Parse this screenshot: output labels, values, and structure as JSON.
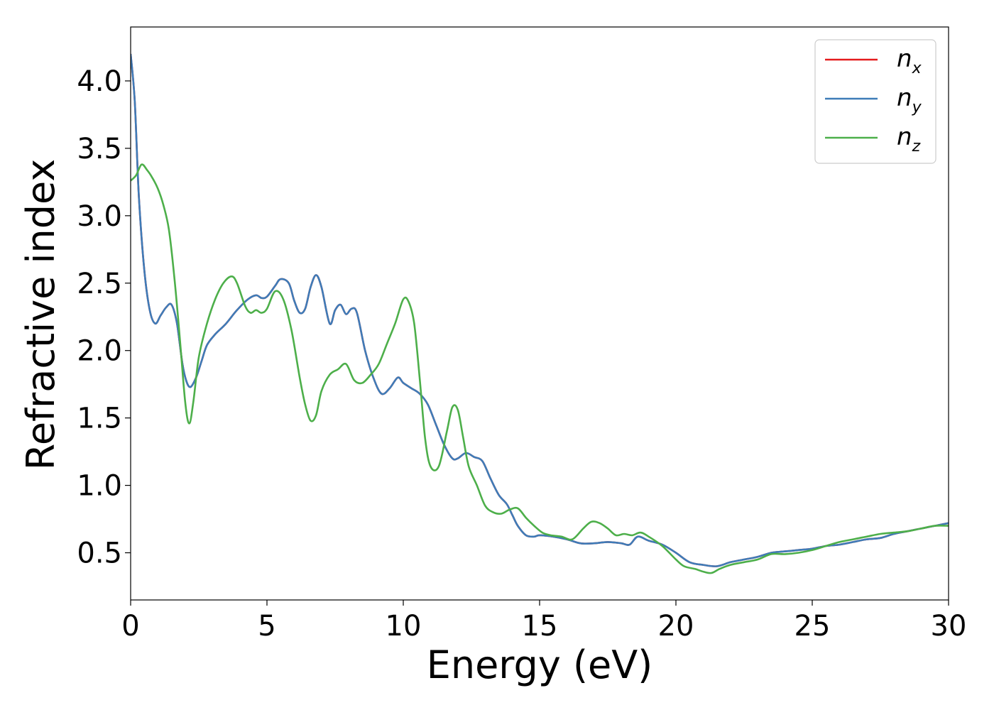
{
  "chart_data": {
    "type": "line",
    "xlabel": "Energy (eV)",
    "ylabel": "Refractive index",
    "xlim": [
      0,
      30
    ],
    "ylim": [
      0.15,
      4.4
    ],
    "x_ticks": [
      "0",
      "5",
      "10",
      "15",
      "20",
      "25",
      "30"
    ],
    "y_ticks": [
      "0.5",
      "1.0",
      "1.5",
      "2.0",
      "2.5",
      "3.0",
      "3.5",
      "4.0"
    ],
    "grid": false,
    "legend_position": "top-right",
    "series": [
      {
        "name": "x",
        "legend_main": "n",
        "legend_sub": "x",
        "color": "#e41a1c",
        "x": [
          0,
          0.15,
          0.3,
          0.5,
          0.7,
          0.9,
          1.1,
          1.3,
          1.5,
          1.7,
          1.9,
          2.05,
          2.2,
          2.4,
          2.6,
          2.8,
          3.1,
          3.5,
          3.9,
          4.3,
          4.6,
          4.8,
          5.0,
          5.3,
          5.5,
          5.8,
          6.0,
          6.2,
          6.4,
          6.6,
          6.8,
          7.0,
          7.3,
          7.5,
          7.7,
          7.9,
          8.1,
          8.3,
          8.6,
          8.9,
          9.2,
          9.5,
          9.8,
          10.0,
          10.3,
          10.6,
          10.9,
          11.2,
          11.5,
          11.8,
          12.0,
          12.3,
          12.6,
          12.9,
          13.2,
          13.5,
          13.8,
          14.0,
          14.2,
          14.5,
          14.8,
          15.0,
          15.5,
          16.0,
          16.5,
          17.0,
          17.5,
          18.0,
          18.3,
          18.6,
          19.0,
          19.5,
          20.0,
          20.5,
          21.0,
          21.5,
          22.0,
          22.5,
          23.0,
          23.5,
          24.0,
          24.5,
          25.0,
          25.5,
          26.0,
          26.5,
          27.0,
          27.5,
          28.0,
          28.5,
          29.0,
          29.5,
          30.0
        ],
        "y": [
          4.2,
          3.85,
          3.15,
          2.6,
          2.3,
          2.2,
          2.26,
          2.32,
          2.34,
          2.2,
          1.9,
          1.77,
          1.73,
          1.8,
          1.92,
          2.04,
          2.12,
          2.2,
          2.3,
          2.38,
          2.41,
          2.39,
          2.4,
          2.48,
          2.53,
          2.5,
          2.37,
          2.28,
          2.31,
          2.47,
          2.56,
          2.47,
          2.2,
          2.3,
          2.34,
          2.27,
          2.31,
          2.28,
          2.0,
          1.8,
          1.68,
          1.72,
          1.8,
          1.76,
          1.72,
          1.68,
          1.6,
          1.45,
          1.3,
          1.2,
          1.2,
          1.24,
          1.21,
          1.18,
          1.05,
          0.93,
          0.86,
          0.78,
          0.7,
          0.63,
          0.62,
          0.63,
          0.62,
          0.6,
          0.57,
          0.57,
          0.58,
          0.57,
          0.56,
          0.62,
          0.59,
          0.56,
          0.5,
          0.43,
          0.41,
          0.4,
          0.43,
          0.45,
          0.47,
          0.5,
          0.51,
          0.52,
          0.53,
          0.55,
          0.56,
          0.58,
          0.6,
          0.61,
          0.64,
          0.66,
          0.68,
          0.7,
          0.72
        ]
      },
      {
        "name": "y",
        "legend_main": "n",
        "legend_sub": "y",
        "color": "#3e7cb8",
        "x": [
          0,
          0.15,
          0.3,
          0.5,
          0.7,
          0.9,
          1.1,
          1.3,
          1.5,
          1.7,
          1.9,
          2.05,
          2.2,
          2.4,
          2.6,
          2.8,
          3.1,
          3.5,
          3.9,
          4.3,
          4.6,
          4.8,
          5.0,
          5.3,
          5.5,
          5.8,
          6.0,
          6.2,
          6.4,
          6.6,
          6.8,
          7.0,
          7.3,
          7.5,
          7.7,
          7.9,
          8.1,
          8.3,
          8.6,
          8.9,
          9.2,
          9.5,
          9.8,
          10.0,
          10.3,
          10.6,
          10.9,
          11.2,
          11.5,
          11.8,
          12.0,
          12.3,
          12.6,
          12.9,
          13.2,
          13.5,
          13.8,
          14.0,
          14.2,
          14.5,
          14.8,
          15.0,
          15.5,
          16.0,
          16.5,
          17.0,
          17.5,
          18.0,
          18.3,
          18.6,
          19.0,
          19.5,
          20.0,
          20.5,
          21.0,
          21.5,
          22.0,
          22.5,
          23.0,
          23.5,
          24.0,
          24.5,
          25.0,
          25.5,
          26.0,
          26.5,
          27.0,
          27.5,
          28.0,
          28.5,
          29.0,
          29.5,
          30.0
        ],
        "y": [
          4.2,
          3.85,
          3.15,
          2.6,
          2.3,
          2.2,
          2.26,
          2.32,
          2.34,
          2.2,
          1.9,
          1.77,
          1.73,
          1.8,
          1.92,
          2.04,
          2.12,
          2.2,
          2.3,
          2.38,
          2.41,
          2.39,
          2.4,
          2.48,
          2.53,
          2.5,
          2.37,
          2.28,
          2.31,
          2.47,
          2.56,
          2.47,
          2.2,
          2.3,
          2.34,
          2.27,
          2.31,
          2.28,
          2.0,
          1.8,
          1.68,
          1.72,
          1.8,
          1.76,
          1.72,
          1.68,
          1.6,
          1.45,
          1.3,
          1.2,
          1.2,
          1.24,
          1.21,
          1.18,
          1.05,
          0.93,
          0.86,
          0.78,
          0.7,
          0.63,
          0.62,
          0.63,
          0.62,
          0.6,
          0.57,
          0.57,
          0.58,
          0.57,
          0.56,
          0.62,
          0.59,
          0.56,
          0.5,
          0.43,
          0.41,
          0.4,
          0.43,
          0.45,
          0.47,
          0.5,
          0.51,
          0.52,
          0.53,
          0.55,
          0.56,
          0.58,
          0.6,
          0.61,
          0.64,
          0.66,
          0.68,
          0.7,
          0.72
        ]
      },
      {
        "name": "z",
        "legend_main": "n",
        "legend_sub": "z",
        "color": "#4daf4a",
        "x": [
          0,
          0.2,
          0.4,
          0.6,
          0.8,
          1.0,
          1.2,
          1.4,
          1.6,
          1.8,
          2.0,
          2.15,
          2.3,
          2.5,
          2.8,
          3.1,
          3.4,
          3.7,
          3.9,
          4.2,
          4.4,
          4.6,
          4.8,
          5.0,
          5.3,
          5.6,
          5.9,
          6.2,
          6.4,
          6.6,
          6.8,
          7.0,
          7.3,
          7.6,
          7.9,
          8.2,
          8.5,
          8.8,
          9.1,
          9.4,
          9.7,
          10.0,
          10.2,
          10.4,
          10.6,
          10.8,
          11.0,
          11.3,
          11.6,
          11.8,
          12.0,
          12.2,
          12.4,
          12.7,
          13.0,
          13.3,
          13.6,
          13.9,
          14.2,
          14.5,
          14.8,
          15.1,
          15.4,
          15.8,
          16.2,
          16.6,
          16.9,
          17.2,
          17.5,
          17.8,
          18.1,
          18.4,
          18.7,
          19.0,
          19.5,
          20.0,
          20.3,
          20.7,
          21.0,
          21.3,
          21.6,
          22.0,
          22.5,
          23.0,
          23.5,
          24.0,
          24.5,
          25.0,
          25.5,
          26.0,
          26.5,
          27.0,
          27.5,
          28.0,
          28.5,
          29.0,
          29.5,
          30.0
        ],
        "y": [
          3.26,
          3.3,
          3.38,
          3.34,
          3.28,
          3.2,
          3.08,
          2.9,
          2.55,
          2.1,
          1.62,
          1.46,
          1.62,
          1.95,
          2.2,
          2.38,
          2.5,
          2.55,
          2.5,
          2.33,
          2.28,
          2.3,
          2.28,
          2.31,
          2.44,
          2.38,
          2.15,
          1.8,
          1.6,
          1.48,
          1.52,
          1.7,
          1.82,
          1.86,
          1.9,
          1.78,
          1.76,
          1.82,
          1.9,
          2.05,
          2.2,
          2.38,
          2.36,
          2.2,
          1.8,
          1.35,
          1.14,
          1.14,
          1.4,
          1.58,
          1.56,
          1.35,
          1.14,
          1.0,
          0.85,
          0.8,
          0.79,
          0.82,
          0.83,
          0.76,
          0.7,
          0.65,
          0.63,
          0.62,
          0.6,
          0.68,
          0.73,
          0.72,
          0.68,
          0.63,
          0.64,
          0.63,
          0.65,
          0.62,
          0.55,
          0.45,
          0.4,
          0.38,
          0.36,
          0.35,
          0.38,
          0.41,
          0.43,
          0.45,
          0.49,
          0.49,
          0.5,
          0.52,
          0.55,
          0.58,
          0.6,
          0.62,
          0.64,
          0.65,
          0.66,
          0.68,
          0.7,
          0.7
        ]
      }
    ]
  }
}
